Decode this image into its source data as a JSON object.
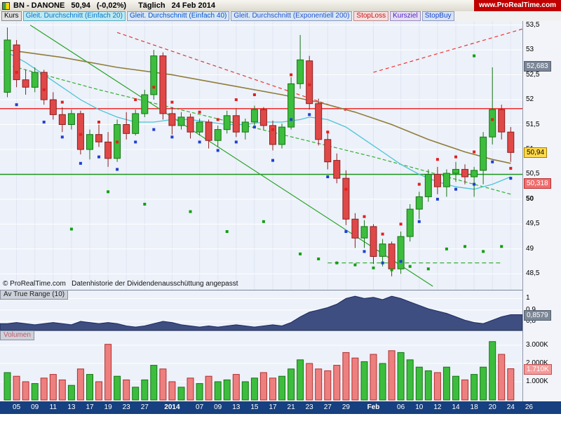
{
  "header": {
    "symbol": "BN - DANONE",
    "price": "50,94",
    "change": "(-0,02%)",
    "timeframe": "Täglich",
    "date": "24 Feb 2014",
    "site": "www.ProRealTime.com"
  },
  "legend": {
    "kurs": "Kurs",
    "items": [
      {
        "label": "Gleit. Durchschnitt (Einfach 20)",
        "color": "#0077cc",
        "bg": "#bfe9f2",
        "border": "#55aabb"
      },
      {
        "label": "Gleit. Durchschnitt (Einfach 40)",
        "color": "#0055cc",
        "bg": "#d9e6f5",
        "border": "#8899bb"
      },
      {
        "label": "Gleit. Durchschnitt (Exponentiell 200)",
        "color": "#2255cc",
        "bg": "#d9e6f5",
        "border": "#8899bb"
      },
      {
        "label": "StopLoss",
        "color": "#cc1111",
        "bg": "#f6dede",
        "border": "#bb8888"
      },
      {
        "label": "Kursziel",
        "color": "#5522bb",
        "bg": "#e4def5",
        "border": "#9988bb"
      },
      {
        "label": "StopBuy",
        "color": "#1144cc",
        "bg": "#d9e2f5",
        "border": "#8899bb"
      }
    ]
  },
  "footer": {
    "copyright": "© ProRealTime.com",
    "note": "Datenhistorie der Dividendenausschüttung angepasst"
  },
  "panels": {
    "atr": {
      "title": "Av True Range (10)",
      "boxed": {
        "v": 0.8579,
        "label": "0,8579"
      },
      "axis": [
        {
          "v": 1,
          "label": "1"
        },
        {
          "v": 0.9,
          "label": "0,9"
        },
        {
          "v": 0.8,
          "label": "0,8"
        }
      ]
    },
    "volume": {
      "title": "Volumen",
      "boxed": {
        "v": 1.71,
        "label": "1.710K"
      },
      "axis": [
        {
          "v": 3,
          "label": "3.000K"
        },
        {
          "v": 2,
          "label": "2.000K"
        },
        {
          "v": 1,
          "label": "1.000K"
        }
      ]
    }
  },
  "price_axis": {
    "labels": [
      {
        "p": 53.5,
        "label": "53,5"
      },
      {
        "p": 53,
        "label": "53"
      },
      {
        "p": 52.5,
        "label": "52,5"
      },
      {
        "p": 52,
        "label": "52"
      },
      {
        "p": 51.5,
        "label": "51,5"
      },
      {
        "p": 51,
        "label": "51"
      },
      {
        "p": 50.5,
        "label": "50,5"
      },
      {
        "p": 50,
        "label": "50",
        "bold": true
      },
      {
        "p": 49.5,
        "label": "49,5"
      },
      {
        "p": 49,
        "label": "49"
      },
      {
        "p": 48.5,
        "label": "48,5"
      }
    ],
    "boxes": [
      {
        "p": 52.683,
        "label": "52,683",
        "style": "gray"
      },
      {
        "p": 50.94,
        "label": "50,94",
        "style": "yellow"
      },
      {
        "p": 50.318,
        "label": "50,318",
        "style": "red"
      }
    ]
  },
  "x_axis": {
    "labels": [
      {
        "i": 1,
        "label": "05"
      },
      {
        "i": 3,
        "label": "09"
      },
      {
        "i": 5,
        "label": "11"
      },
      {
        "i": 7,
        "label": "13"
      },
      {
        "i": 9,
        "label": "17"
      },
      {
        "i": 11,
        "label": "19"
      },
      {
        "i": 13,
        "label": "23"
      },
      {
        "i": 15,
        "label": "27"
      },
      {
        "i": 18,
        "label": "2014",
        "b": true
      },
      {
        "i": 21,
        "label": "07"
      },
      {
        "i": 23,
        "label": "09"
      },
      {
        "i": 25,
        "label": "13"
      },
      {
        "i": 27,
        "label": "15"
      },
      {
        "i": 29,
        "label": "17"
      },
      {
        "i": 31,
        "label": "21"
      },
      {
        "i": 33,
        "label": "23"
      },
      {
        "i": 35,
        "label": "27"
      },
      {
        "i": 37,
        "label": "29"
      },
      {
        "i": 40,
        "label": "Feb",
        "b": true
      },
      {
        "i": 43,
        "label": "06"
      },
      {
        "i": 45,
        "label": "10"
      },
      {
        "i": 47,
        "label": "12"
      },
      {
        "i": 49,
        "label": "14"
      },
      {
        "i": 51,
        "label": "18"
      },
      {
        "i": 53,
        "label": "20"
      },
      {
        "i": 55,
        "label": "24"
      },
      {
        "i": 57,
        "label": "26"
      }
    ]
  },
  "chart_data": {
    "type": "candlestick",
    "symbol": "BN - DANONE",
    "timeframe": "Täglich",
    "last_price": 50.94,
    "change_pct": -0.02,
    "price_range": [
      48.18,
      53.58
    ],
    "dates": [
      "04 Dez",
      "05 Dez",
      "06 Dez",
      "09 Dez",
      "10 Dez",
      "11 Dez",
      "12 Dez",
      "13 Dez",
      "16 Dez",
      "17 Dez",
      "18 Dez",
      "19 Dez",
      "20 Dez",
      "23 Dez",
      "24 Dez",
      "27 Dez",
      "30 Dez",
      "31 Dez",
      "02 Jan",
      "03 Jan",
      "06 Jan",
      "07 Jan",
      "08 Jan",
      "09 Jan",
      "10 Jan",
      "13 Jan",
      "14 Jan",
      "15 Jan",
      "16 Jan",
      "17 Jan",
      "20 Jan",
      "21 Jan",
      "22 Jan",
      "23 Jan",
      "24 Jan",
      "27 Jan",
      "28 Jan",
      "29 Jan",
      "30 Jan",
      "31 Jan",
      "03 Feb",
      "04 Feb",
      "05 Feb",
      "06 Feb",
      "07 Feb",
      "10 Feb",
      "11 Feb",
      "12 Feb",
      "13 Feb",
      "14 Feb",
      "17 Feb",
      "18 Feb",
      "19 Feb",
      "20 Feb",
      "21 Feb",
      "24 Feb"
    ],
    "ohlc": [
      [
        52.15,
        53.45,
        52.05,
        53.2
      ],
      [
        53.1,
        53.2,
        52.25,
        52.4
      ],
      [
        52.4,
        52.6,
        52.1,
        52.25
      ],
      [
        52.25,
        52.65,
        52.15,
        52.55
      ],
      [
        52.55,
        52.6,
        51.9,
        52.0
      ],
      [
        52.0,
        52.15,
        51.6,
        51.7
      ],
      [
        51.7,
        51.85,
        51.35,
        51.5
      ],
      [
        51.5,
        51.8,
        51.4,
        51.72
      ],
      [
        51.72,
        51.78,
        50.9,
        51.0
      ],
      [
        51.0,
        51.4,
        50.8,
        51.3
      ],
      [
        51.3,
        51.5,
        51.05,
        51.15
      ],
      [
        51.15,
        51.35,
        50.65,
        50.82
      ],
      [
        50.82,
        51.6,
        50.75,
        51.5
      ],
      [
        51.5,
        51.75,
        51.2,
        51.32
      ],
      [
        51.32,
        51.8,
        51.28,
        51.72
      ],
      [
        51.72,
        52.2,
        51.65,
        52.1
      ],
      [
        52.1,
        53.0,
        52.0,
        52.88
      ],
      [
        52.88,
        52.95,
        51.6,
        51.72
      ],
      [
        51.72,
        51.85,
        51.3,
        51.48
      ],
      [
        51.48,
        51.75,
        51.4,
        51.65
      ],
      [
        51.65,
        51.72,
        51.22,
        51.35
      ],
      [
        51.35,
        51.62,
        51.28,
        51.55
      ],
      [
        51.55,
        51.6,
        51.02,
        51.18
      ],
      [
        51.18,
        51.48,
        51.05,
        51.4
      ],
      [
        51.4,
        51.78,
        51.32,
        51.68
      ],
      [
        51.68,
        51.82,
        51.25,
        51.35
      ],
      [
        51.35,
        51.62,
        51.2,
        51.55
      ],
      [
        51.55,
        51.88,
        51.48,
        51.8
      ],
      [
        51.8,
        51.85,
        51.4,
        51.48
      ],
      [
        51.48,
        51.58,
        50.98,
        51.1
      ],
      [
        51.1,
        51.52,
        51.02,
        51.45
      ],
      [
        51.45,
        52.45,
        51.4,
        52.32
      ],
      [
        52.32,
        53.3,
        52.22,
        52.8
      ],
      [
        52.78,
        52.88,
        51.8,
        51.92
      ],
      [
        51.92,
        52.02,
        51.08,
        51.2
      ],
      [
        51.2,
        51.32,
        50.6,
        50.75
      ],
      [
        50.78,
        50.92,
        50.32,
        50.42
      ],
      [
        50.42,
        50.58,
        49.48,
        49.6
      ],
      [
        49.6,
        49.72,
        49.02,
        49.22
      ],
      [
        49.22,
        49.58,
        49.02,
        49.45
      ],
      [
        49.45,
        49.5,
        48.7,
        48.85
      ],
      [
        48.85,
        49.2,
        48.65,
        49.1
      ],
      [
        49.1,
        49.15,
        48.45,
        48.6
      ],
      [
        48.6,
        49.35,
        48.5,
        49.25
      ],
      [
        49.25,
        49.9,
        49.15,
        49.8
      ],
      [
        49.8,
        50.15,
        49.6,
        50.05
      ],
      [
        50.05,
        50.6,
        49.95,
        50.5
      ],
      [
        50.5,
        50.65,
        50.1,
        50.25
      ],
      [
        50.25,
        50.6,
        50.05,
        50.52
      ],
      [
        50.52,
        50.75,
        50.35,
        50.6
      ],
      [
        50.6,
        50.7,
        50.3,
        50.45
      ],
      [
        50.45,
        50.65,
        50.05,
        50.58
      ],
      [
        50.58,
        51.35,
        50.3,
        51.25
      ],
      [
        51.25,
        52.65,
        51.1,
        51.8
      ],
      [
        51.8,
        51.9,
        51.2,
        51.35
      ],
      [
        51.35,
        51.45,
        50.75,
        50.94
      ]
    ],
    "volume_k": [
      1.5,
      1.3,
      1.0,
      0.9,
      1.2,
      1.4,
      1.1,
      0.8,
      1.7,
      1.4,
      1.0,
      3.05,
      1.3,
      1.1,
      0.7,
      1.1,
      1.9,
      1.7,
      1.0,
      0.7,
      1.2,
      0.9,
      1.3,
      1.0,
      1.1,
      1.4,
      1.0,
      1.2,
      1.5,
      1.2,
      1.3,
      1.7,
      2.2,
      2.0,
      1.7,
      1.6,
      1.9,
      2.6,
      2.3,
      2.1,
      2.5,
      2.0,
      2.7,
      2.6,
      2.2,
      1.8,
      1.6,
      1.5,
      1.8,
      1.3,
      1.1,
      1.4,
      1.8,
      3.2,
      2.5,
      1.71
    ],
    "atr10": [
      0.78,
      0.79,
      0.78,
      0.77,
      0.78,
      0.79,
      0.78,
      0.77,
      0.8,
      0.79,
      0.78,
      0.79,
      0.78,
      0.76,
      0.75,
      0.76,
      0.78,
      0.8,
      0.79,
      0.77,
      0.76,
      0.75,
      0.76,
      0.75,
      0.76,
      0.77,
      0.76,
      0.75,
      0.76,
      0.77,
      0.76,
      0.79,
      0.84,
      0.88,
      0.9,
      0.92,
      0.95,
      1.0,
      1.02,
      1.0,
      1.01,
      0.99,
      1.02,
      1.0,
      0.97,
      0.94,
      0.91,
      0.89,
      0.87,
      0.84,
      0.81,
      0.79,
      0.78,
      0.81,
      0.84,
      0.8579
    ],
    "atr_range": [
      0.72,
      1.07
    ],
    "vol_range": [
      0,
      3.5
    ],
    "overlays": {
      "sma20": {
        "color": "#4cc4d8",
        "points": [
          [
            0,
            52.95
          ],
          [
            2,
            52.75
          ],
          [
            4,
            52.5
          ],
          [
            6,
            52.25
          ],
          [
            8,
            52.0
          ],
          [
            10,
            51.8
          ],
          [
            12,
            51.65
          ],
          [
            14,
            51.55
          ],
          [
            16,
            51.55
          ],
          [
            18,
            51.6
          ],
          [
            20,
            51.6
          ],
          [
            22,
            51.55
          ],
          [
            24,
            51.5
          ],
          [
            26,
            51.5
          ],
          [
            28,
            51.55
          ],
          [
            30,
            51.55
          ],
          [
            32,
            51.6
          ],
          [
            33,
            51.65
          ],
          [
            35,
            51.6
          ],
          [
            37,
            51.45
          ],
          [
            39,
            51.2
          ],
          [
            41,
            50.95
          ],
          [
            43,
            50.7
          ],
          [
            45,
            50.5
          ],
          [
            47,
            50.35
          ],
          [
            49,
            50.25
          ],
          [
            51,
            50.2
          ],
          [
            53,
            50.3
          ],
          [
            55,
            50.45
          ]
        ]
      },
      "sma40": {
        "color": "#8f7d3a",
        "points": [
          [
            0,
            53.0
          ],
          [
            6,
            52.85
          ],
          [
            12,
            52.65
          ],
          [
            18,
            52.5
          ],
          [
            24,
            52.3
          ],
          [
            30,
            52.1
          ],
          [
            34,
            51.95
          ],
          [
            38,
            51.75
          ],
          [
            42,
            51.5
          ],
          [
            46,
            51.2
          ],
          [
            50,
            50.95
          ],
          [
            53,
            50.8
          ],
          [
            55,
            50.72
          ]
        ]
      },
      "ema200": {
        "color": "#30b030",
        "dash": "5,3",
        "points": [
          [
            0,
            52.7
          ],
          [
            10,
            52.2
          ],
          [
            20,
            51.75
          ],
          [
            30,
            51.3
          ],
          [
            40,
            50.85
          ],
          [
            50,
            50.35
          ],
          [
            55,
            50.1
          ]
        ]
      },
      "hlines": [
        {
          "p": 51.82,
          "color": "#f01818",
          "w": 1.3
        },
        {
          "p": 50.5,
          "color": "#189518",
          "w": 1.5
        }
      ],
      "trendlines": [
        {
          "from": [
            12,
            53.35
          ],
          "to": [
            37,
            51.78
          ],
          "color": "#f03030",
          "dash": "5,4"
        },
        {
          "from": [
            40,
            52.55
          ],
          "to": [
            56.3,
            53.42
          ],
          "color": "#f03030",
          "dash": "5,4"
        },
        {
          "from": [
            2.5,
            53.5
          ],
          "to": [
            46.5,
            48.25
          ],
          "color": "#28a428",
          "dash": ""
        },
        {
          "from": [
            35,
            48.72
          ],
          "to": [
            54,
            48.72
          ],
          "color": "#28a428",
          "dash": "6,4"
        }
      ],
      "marker_colors": {
        "stoploss": "#e02020",
        "kursziel": "#2040d0",
        "stopbuy": "#10a010"
      },
      "stoploss_dots": [
        [
          1,
          52.55
        ],
        [
          4,
          52.2
        ],
        [
          6,
          51.95
        ],
        [
          8,
          51.3
        ],
        [
          10,
          51.55
        ],
        [
          12,
          51.15
        ],
        [
          14,
          52.0
        ],
        [
          16,
          52.25
        ],
        [
          18,
          51.95
        ],
        [
          21,
          51.75
        ],
        [
          23,
          51.6
        ],
        [
          25,
          52.0
        ],
        [
          27,
          52.1
        ],
        [
          29,
          51.4
        ],
        [
          31,
          52.5
        ],
        [
          33,
          52.3
        ],
        [
          35,
          51.35
        ],
        [
          37,
          50.2
        ],
        [
          39,
          49.65
        ],
        [
          41,
          49.3
        ],
        [
          43,
          49.5
        ],
        [
          45,
          50.3
        ],
        [
          47,
          50.8
        ],
        [
          49,
          50.85
        ],
        [
          51,
          50.95
        ],
        [
          53,
          51.6
        ],
        [
          55,
          50.62
        ]
      ],
      "kursziel_dots": [
        [
          1,
          51.9
        ],
        [
          4,
          51.55
        ],
        [
          6,
          51.25
        ],
        [
          8,
          50.72
        ],
        [
          10,
          50.85
        ],
        [
          12,
          50.6
        ],
        [
          14,
          51.15
        ],
        [
          16,
          51.4
        ],
        [
          18,
          51.25
        ],
        [
          21,
          51.15
        ],
        [
          23,
          50.98
        ],
        [
          25,
          51.15
        ],
        [
          27,
          51.45
        ],
        [
          29,
          50.78
        ],
        [
          31,
          51.6
        ],
        [
          33,
          51.7
        ],
        [
          35,
          50.45
        ],
        [
          37,
          49.35
        ],
        [
          39,
          48.95
        ],
        [
          41,
          48.72
        ],
        [
          43,
          48.75
        ],
        [
          45,
          49.55
        ],
        [
          47,
          50.0
        ],
        [
          49,
          50.2
        ],
        [
          51,
          50.3
        ],
        [
          53,
          50.75
        ],
        [
          55,
          50.42
        ]
      ],
      "stopbuy_dots": [
        [
          7,
          49.4
        ],
        [
          11,
          50.15
        ],
        [
          15,
          49.9
        ],
        [
          20,
          49.75
        ],
        [
          24,
          49.35
        ],
        [
          28,
          49.55
        ],
        [
          32,
          48.9
        ],
        [
          34,
          48.8
        ],
        [
          36,
          48.72
        ],
        [
          38,
          48.68
        ],
        [
          40,
          48.62
        ],
        [
          42,
          48.58
        ],
        [
          44,
          48.65
        ],
        [
          46,
          48.6
        ],
        [
          48,
          49.0
        ],
        [
          50,
          49.05
        ],
        [
          52,
          48.95
        ],
        [
          54,
          49.05
        ],
        [
          51,
          52.88
        ]
      ]
    }
  }
}
